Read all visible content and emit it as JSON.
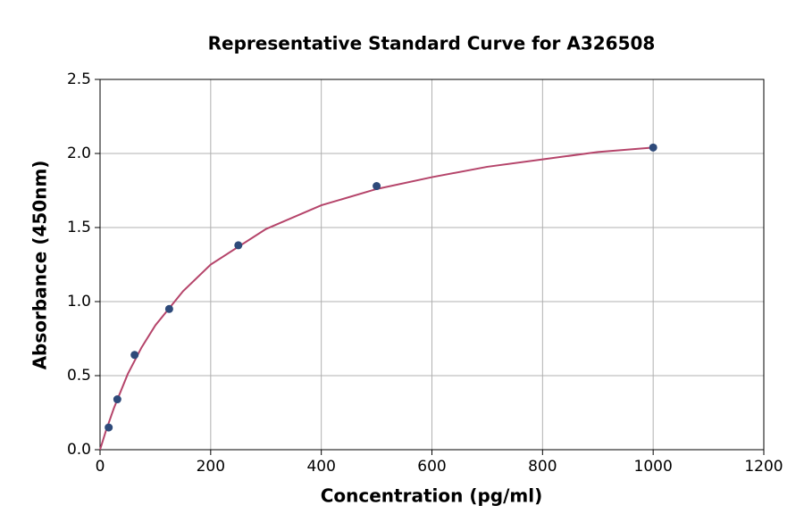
{
  "chart_data": {
    "type": "scatter",
    "title": "Representative Standard Curve for A326508",
    "x_label": "Concentration (pg/ml)",
    "y_label": "Absorbance (450nm)",
    "xlim": [
      0,
      1200
    ],
    "xticks": [
      0,
      200,
      400,
      600,
      800,
      1000,
      1200
    ],
    "ylim": [
      0,
      2.5
    ],
    "yticks": [
      {
        "value": 0,
        "label": "0.0"
      },
      0.5,
      {
        "value": 1,
        "label": "1.0"
      },
      1.5,
      {
        "value": 2,
        "label": "2.0"
      },
      2.5
    ],
    "grid": true,
    "series": [
      {
        "style": "markers",
        "color": "#2e4a7a",
        "x": [
          15.625,
          31.25,
          62.5,
          125,
          250,
          500,
          1000
        ],
        "values": [
          0.15,
          0.34,
          0.64,
          0.95,
          1.38,
          1.78,
          2.04
        ]
      },
      {
        "style": "line",
        "color": "#b5446a",
        "x": [
          0,
          10,
          25,
          50,
          75,
          100,
          150,
          200,
          300,
          400,
          500,
          600,
          700,
          800,
          900,
          1000
        ],
        "values": [
          0,
          0.12,
          0.28,
          0.51,
          0.69,
          0.84,
          1.07,
          1.25,
          1.49,
          1.65,
          1.76,
          1.84,
          1.91,
          1.96,
          2.01,
          2.04
        ]
      }
    ]
  }
}
